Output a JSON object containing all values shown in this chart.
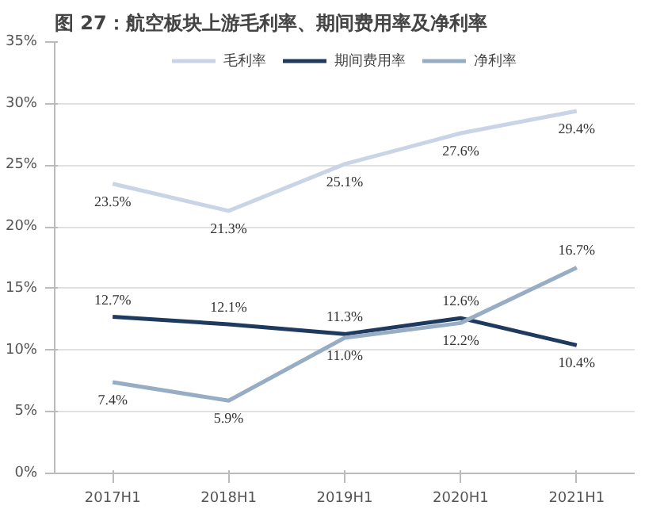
{
  "chart_data": {
    "type": "line",
    "title": "图 27：航空板块上游毛利率、期间费用率及净利率",
    "categories": [
      "2017H1",
      "2018H1",
      "2019H1",
      "2020H1",
      "2021H1"
    ],
    "series": [
      {
        "name": "毛利率",
        "color": "#c9d5e6",
        "values": [
          23.5,
          21.3,
          25.1,
          27.6,
          29.4
        ],
        "value_labels": [
          "23.5%",
          "21.3%",
          "25.1%",
          "27.6%",
          "29.4%"
        ]
      },
      {
        "name": "期间费用率",
        "color": "#1f3a5f",
        "values": [
          12.7,
          12.1,
          11.3,
          12.6,
          10.4
        ],
        "value_labels": [
          "12.7%",
          "12.1%",
          "11.3%",
          "12.6%",
          "10.4%"
        ]
      },
      {
        "name": "净利率",
        "color": "#97adc4",
        "values": [
          7.4,
          5.9,
          11.0,
          12.2,
          16.7
        ],
        "value_labels": [
          "7.4%",
          "5.9%",
          "11.0%",
          "12.2%",
          "16.7%"
        ]
      }
    ],
    "ylim": [
      0,
      35
    ],
    "yticks": [
      {
        "value": 0,
        "label": "0%"
      },
      {
        "value": 5,
        "label": "5%"
      },
      {
        "value": 10,
        "label": "10%"
      },
      {
        "value": 15,
        "label": "15%"
      },
      {
        "value": 20,
        "label": "20%"
      },
      {
        "value": 25,
        "label": "25%"
      },
      {
        "value": 30,
        "label": "30%"
      },
      {
        "value": 35,
        "label": "35%"
      }
    ],
    "grid": "y",
    "legend": "top",
    "line_style": "solid"
  }
}
